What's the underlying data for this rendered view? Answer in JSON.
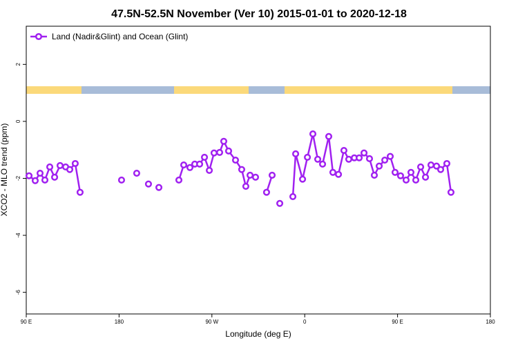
{
  "chart_data": {
    "type": "line",
    "title": "47.5N-52.5N November (Ver 10)   2015-01-01 to 2020-12-18",
    "x_label": "Longitude (deg E)",
    "y_label": "XCO2 - MLO trend (ppm)",
    "xlim": [
      90,
      540
    ],
    "ylim": [
      -6.76,
      3.34
    ],
    "xticks": [
      {
        "value": 90,
        "label": "90 E"
      },
      180,
      {
        "value": 270,
        "label": "90 W"
      },
      {
        "value": 360,
        "label": "0"
      },
      {
        "value": 450,
        "label": "90 E"
      },
      {
        "value": 540,
        "label": "180"
      }
    ],
    "yticks": [
      2,
      0,
      -2,
      -4,
      -6
    ],
    "legend": "top-left",
    "series": [
      {
        "name": "Land (Nadir&Glint) and Ocean (Glint)",
        "color": "#a020f0",
        "x": [
          92.7,
          98.7,
          103.4,
          108.1,
          112.8,
          117.5,
          122.8,
          128.2,
          132.2,
          137.5,
          142.2,
          null,
          182.4,
          null,
          197.1,
          null,
          208.5,
          null,
          218.6,
          null,
          238.0,
          242.7,
          248.7,
          253.4,
          258.1,
          262.8,
          267.5,
          272.1,
          277.5,
          281.5,
          286.2,
          292.9,
          298.9,
          302.9,
          307.0,
          312.3,
          null,
          323.0,
          328.4,
          null,
          335.8,
          null,
          348.5,
          351.2,
          357.9,
          362.6,
          367.9,
          372.6,
          377.3,
          383.3,
          387.3,
          392.7,
          398.0,
          402.7,
          408.1,
          412.8,
          417.5,
          422.8,
          427.5,
          432.2,
          437.6,
          442.9,
          447.6,
          452.9,
          458.3,
          463.0,
          467.7,
          472.4,
          477.1,
          482.4,
          487.8,
          491.8,
          497.8,
          501.8
        ],
        "values": [
          -1.91,
          -2.08,
          -1.82,
          -2.06,
          -1.6,
          -1.96,
          -1.55,
          -1.6,
          -1.69,
          -1.48,
          -2.49,
          null,
          -2.06,
          null,
          -1.82,
          null,
          -2.2,
          null,
          -2.32,
          null,
          -2.06,
          -1.53,
          -1.62,
          -1.5,
          -1.5,
          -1.26,
          -1.72,
          -1.11,
          -1.09,
          -0.7,
          -1.04,
          -1.36,
          -1.69,
          -2.28,
          -1.89,
          -1.96,
          null,
          -2.49,
          -1.89,
          null,
          -2.88,
          null,
          -2.64,
          -1.14,
          -2.03,
          -1.26,
          -0.44,
          -1.33,
          -1.5,
          -0.53,
          -1.79,
          -1.86,
          -1.02,
          -1.33,
          -1.28,
          -1.28,
          -1.11,
          -1.31,
          -1.89,
          -1.57,
          -1.36,
          -1.23,
          -1.79,
          -1.91,
          -2.06,
          -1.79,
          -2.06,
          -1.6,
          -1.96,
          -1.53,
          -1.57,
          -1.69,
          -1.48,
          -2.49
        ]
      }
    ]
  }
}
